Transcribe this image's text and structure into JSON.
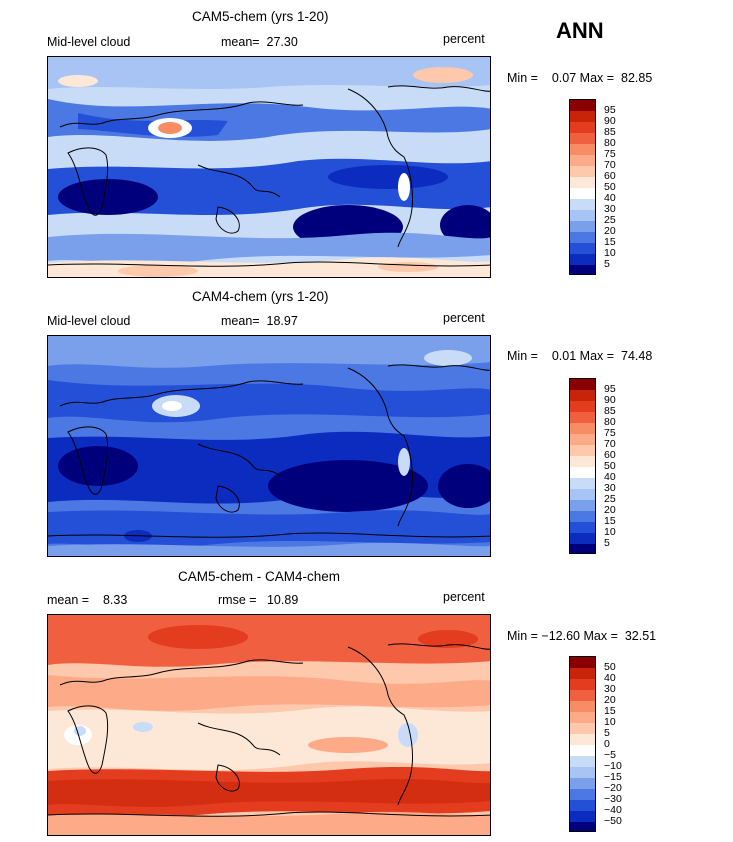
{
  "season": "ANN",
  "panels": [
    {
      "id": "p1",
      "title": "CAM5-chem (yrs 1-20)",
      "left_label": "Mid-level cloud",
      "center_label": "mean=",
      "center_value": "27.30",
      "units": "percent",
      "min_label": "Min =",
      "min_value": "0.07",
      "max_label": "Max =",
      "max_value": "82.85",
      "colorbar_ticks": [
        "95",
        "90",
        "85",
        "80",
        "75",
        "70",
        "60",
        "50",
        "40",
        "30",
        "25",
        "20",
        "15",
        "10",
        "5"
      ],
      "colorbar_colors": [
        "#8a0000",
        "#c8240a",
        "#e43c1e",
        "#f06040",
        "#f88c64",
        "#fcaa88",
        "#fdc8ac",
        "#fde8d8",
        "#ffffff",
        "#c8dcf8",
        "#a8c4f4",
        "#7aa0ec",
        "#4c78e4",
        "#2450d8",
        "#0c2cc0",
        "#00007c"
      ]
    },
    {
      "id": "p2",
      "title": "CAM4-chem (yrs 1-20)",
      "left_label": "Mid-level cloud",
      "center_label": "mean=",
      "center_value": "18.97",
      "units": "percent",
      "min_label": "Min =",
      "min_value": "0.01",
      "max_label": "Max =",
      "max_value": "74.48",
      "colorbar_ticks": [
        "95",
        "90",
        "85",
        "80",
        "75",
        "70",
        "60",
        "50",
        "40",
        "30",
        "25",
        "20",
        "15",
        "10",
        "5"
      ],
      "colorbar_colors": [
        "#8a0000",
        "#c8240a",
        "#e43c1e",
        "#f06040",
        "#f88c64",
        "#fcaa88",
        "#fdc8ac",
        "#fde8d8",
        "#ffffff",
        "#c8dcf8",
        "#a8c4f4",
        "#7aa0ec",
        "#4c78e4",
        "#2450d8",
        "#0c2cc0",
        "#00007c"
      ]
    },
    {
      "id": "p3",
      "title": "CAM5-chem - CAM4-chem",
      "left_label": "mean =",
      "left_value": "8.33",
      "center_label": "rmse =",
      "center_value": "10.89",
      "units": "percent",
      "min_label": "Min =",
      "min_value": "−12.60",
      "max_label": "Max =",
      "max_value": "32.51",
      "colorbar_ticks": [
        "50",
        "40",
        "30",
        "20",
        "15",
        "10",
        "5",
        "0",
        "−5",
        "−10",
        "−15",
        "−20",
        "−30",
        "−40",
        "−50"
      ],
      "colorbar_colors": [
        "#8a0000",
        "#c8240a",
        "#e43c1e",
        "#f06040",
        "#f88c64",
        "#fcaa88",
        "#fdc8ac",
        "#fde8d8",
        "#ffffff",
        "#c8dcf8",
        "#a8c4f4",
        "#7aa0ec",
        "#4c78e4",
        "#2450d8",
        "#0c2cc0",
        "#00007c"
      ]
    }
  ],
  "chart_data": [
    {
      "type": "heatmap",
      "title": "CAM5-chem (yrs 1-20)",
      "variable": "Mid-level cloud",
      "units": "percent",
      "mean": 27.3,
      "min": 0.07,
      "max": 82.85,
      "levels": [
        5,
        10,
        15,
        20,
        25,
        30,
        40,
        50,
        60,
        70,
        75,
        80,
        85,
        90,
        95
      ]
    },
    {
      "type": "heatmap",
      "title": "CAM4-chem (yrs 1-20)",
      "variable": "Mid-level cloud",
      "units": "percent",
      "mean": 18.97,
      "min": 0.01,
      "max": 74.48,
      "levels": [
        5,
        10,
        15,
        20,
        25,
        30,
        40,
        50,
        60,
        70,
        75,
        80,
        85,
        90,
        95
      ]
    },
    {
      "type": "heatmap",
      "title": "CAM5-chem - CAM4-chem",
      "units": "percent",
      "mean": 8.33,
      "rmse": 10.89,
      "min": -12.6,
      "max": 32.51,
      "levels": [
        -50,
        -40,
        -30,
        -20,
        -15,
        -10,
        -5,
        0,
        5,
        10,
        15,
        20,
        30,
        40,
        50
      ]
    }
  ]
}
